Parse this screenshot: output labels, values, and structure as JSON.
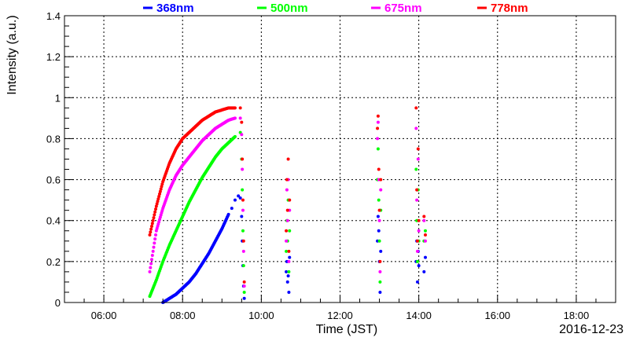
{
  "chart_data": {
    "type": "scatter",
    "title": "",
    "xlabel": "Time (JST)",
    "ylabel": "Intensity (a.u.)",
    "date_label": "2016-12-23",
    "x_ticks": [
      "06:00",
      "08:00",
      "10:00",
      "12:00",
      "14:00",
      "16:00",
      "18:00"
    ],
    "y_ticks": [
      "0",
      "0.2",
      "0.4",
      "0.6",
      "0.8",
      "1",
      "1.2",
      "1.4"
    ],
    "xlim": [
      "05:00",
      "19:00"
    ],
    "ylim": [
      0,
      1.4
    ],
    "grid": true,
    "legend_position": "top",
    "series": [
      {
        "name": "368nm",
        "color": "#0000ff",
        "points": [
          [
            "07:30",
            0.0
          ],
          [
            "07:40",
            0.02
          ],
          [
            "07:50",
            0.04
          ],
          [
            "08:00",
            0.07
          ],
          [
            "08:10",
            0.1
          ],
          [
            "08:20",
            0.14
          ],
          [
            "08:30",
            0.19
          ],
          [
            "08:40",
            0.24
          ],
          [
            "08:50",
            0.3
          ],
          [
            "09:00",
            0.36
          ],
          [
            "09:10",
            0.43
          ],
          [
            "09:15",
            0.46
          ],
          [
            "09:20",
            0.5
          ],
          [
            "09:25",
            0.52
          ],
          [
            "09:28",
            0.51
          ],
          [
            "09:30",
            0.42
          ],
          [
            "09:31",
            0.3
          ],
          [
            "09:32",
            0.18
          ],
          [
            "09:33",
            0.08
          ],
          [
            "09:34",
            0.02
          ],
          [
            "10:38",
            0.15
          ],
          [
            "10:39",
            0.2
          ],
          [
            "10:40",
            0.1
          ],
          [
            "10:41",
            0.13
          ],
          [
            "10:42",
            0.05
          ],
          [
            "10:43",
            0.22
          ],
          [
            "12:57",
            0.3
          ],
          [
            "12:58",
            0.42
          ],
          [
            "12:59",
            0.35
          ],
          [
            "13:00",
            0.2
          ],
          [
            "13:01",
            0.05
          ],
          [
            "13:02",
            0.25
          ],
          [
            "13:56",
            0.2
          ],
          [
            "13:57",
            0.3
          ],
          [
            "13:58",
            0.1
          ],
          [
            "13:59",
            0.25
          ],
          [
            "14:00",
            0.18
          ],
          [
            "14:08",
            0.15
          ],
          [
            "14:10",
            0.22
          ]
        ]
      },
      {
        "name": "500nm",
        "color": "#00ff00",
        "points": [
          [
            "07:10",
            0.03
          ],
          [
            "07:20",
            0.11
          ],
          [
            "07:30",
            0.2
          ],
          [
            "07:40",
            0.28
          ],
          [
            "07:50",
            0.35
          ],
          [
            "08:00",
            0.42
          ],
          [
            "08:10",
            0.49
          ],
          [
            "08:20",
            0.55
          ],
          [
            "08:30",
            0.61
          ],
          [
            "08:40",
            0.66
          ],
          [
            "08:50",
            0.71
          ],
          [
            "09:00",
            0.75
          ],
          [
            "09:10",
            0.78
          ],
          [
            "09:20",
            0.81
          ],
          [
            "09:28",
            0.83
          ],
          [
            "09:30",
            0.7
          ],
          [
            "09:31",
            0.55
          ],
          [
            "09:32",
            0.35
          ],
          [
            "09:33",
            0.18
          ],
          [
            "09:34",
            0.05
          ],
          [
            "10:38",
            0.25
          ],
          [
            "10:39",
            0.4
          ],
          [
            "10:40",
            0.3
          ],
          [
            "10:41",
            0.5
          ],
          [
            "10:42",
            0.15
          ],
          [
            "10:43",
            0.35
          ],
          [
            "12:57",
            0.6
          ],
          [
            "12:58",
            0.75
          ],
          [
            "12:59",
            0.5
          ],
          [
            "13:00",
            0.3
          ],
          [
            "13:01",
            0.1
          ],
          [
            "13:02",
            0.45
          ],
          [
            "13:56",
            0.65
          ],
          [
            "13:57",
            0.4
          ],
          [
            "13:58",
            0.2
          ],
          [
            "13:59",
            0.55
          ],
          [
            "14:00",
            0.3
          ],
          [
            "14:08",
            0.3
          ],
          [
            "14:10",
            0.35
          ]
        ]
      },
      {
        "name": "675nm",
        "color": "#ff00ff",
        "points": [
          [
            "07:10",
            0.15
          ],
          [
            "07:20",
            0.35
          ],
          [
            "07:30",
            0.46
          ],
          [
            "07:40",
            0.55
          ],
          [
            "07:50",
            0.62
          ],
          [
            "08:00",
            0.67
          ],
          [
            "08:10",
            0.71
          ],
          [
            "08:20",
            0.75
          ],
          [
            "08:30",
            0.79
          ],
          [
            "08:40",
            0.82
          ],
          [
            "08:50",
            0.85
          ],
          [
            "09:00",
            0.87
          ],
          [
            "09:10",
            0.89
          ],
          [
            "09:20",
            0.9
          ],
          [
            "09:28",
            0.9
          ],
          [
            "09:30",
            0.82
          ],
          [
            "09:31",
            0.65
          ],
          [
            "09:32",
            0.45
          ],
          [
            "09:33",
            0.25
          ],
          [
            "09:34",
            0.08
          ],
          [
            "10:38",
            0.3
          ],
          [
            "10:39",
            0.55
          ],
          [
            "10:40",
            0.4
          ],
          [
            "10:41",
            0.6
          ],
          [
            "10:42",
            0.2
          ],
          [
            "10:43",
            0.45
          ],
          [
            "12:57",
            0.8
          ],
          [
            "12:58",
            0.88
          ],
          [
            "12:59",
            0.6
          ],
          [
            "13:00",
            0.4
          ],
          [
            "13:01",
            0.15
          ],
          [
            "13:02",
            0.55
          ],
          [
            "13:56",
            0.85
          ],
          [
            "13:57",
            0.5
          ],
          [
            "13:58",
            0.25
          ],
          [
            "13:59",
            0.7
          ],
          [
            "14:00",
            0.35
          ],
          [
            "14:08",
            0.4
          ],
          [
            "14:10",
            0.3
          ]
        ]
      },
      {
        "name": "778nm",
        "color": "#ff0000",
        "points": [
          [
            "07:10",
            0.33
          ],
          [
            "07:20",
            0.47
          ],
          [
            "07:30",
            0.59
          ],
          [
            "07:40",
            0.68
          ],
          [
            "07:50",
            0.75
          ],
          [
            "08:00",
            0.8
          ],
          [
            "08:10",
            0.83
          ],
          [
            "08:20",
            0.86
          ],
          [
            "08:30",
            0.89
          ],
          [
            "08:40",
            0.91
          ],
          [
            "08:50",
            0.93
          ],
          [
            "09:00",
            0.94
          ],
          [
            "09:10",
            0.95
          ],
          [
            "09:20",
            0.95
          ],
          [
            "09:28",
            0.95
          ],
          [
            "09:30",
            0.88
          ],
          [
            "09:31",
            0.7
          ],
          [
            "09:32",
            0.5
          ],
          [
            "09:33",
            0.3
          ],
          [
            "09:34",
            0.1
          ],
          [
            "10:38",
            0.35
          ],
          [
            "10:39",
            0.6
          ],
          [
            "10:40",
            0.45
          ],
          [
            "10:41",
            0.7
          ],
          [
            "10:42",
            0.25
          ],
          [
            "10:43",
            0.5
          ],
          [
            "12:57",
            0.85
          ],
          [
            "12:58",
            0.91
          ],
          [
            "12:59",
            0.65
          ],
          [
            "13:00",
            0.45
          ],
          [
            "13:01",
            0.2
          ],
          [
            "13:02",
            0.6
          ],
          [
            "13:56",
            0.95
          ],
          [
            "13:57",
            0.55
          ],
          [
            "13:58",
            0.3
          ],
          [
            "13:59",
            0.75
          ],
          [
            "14:00",
            0.4
          ],
          [
            "14:08",
            0.42
          ],
          [
            "14:10",
            0.33
          ]
        ]
      }
    ]
  }
}
